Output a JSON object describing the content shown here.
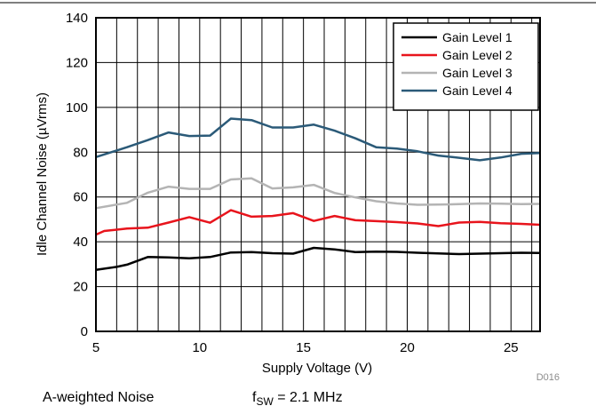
{
  "chart_data": {
    "type": "line",
    "xlabel": "Supply Voltage (V)",
    "ylabel": "Idle Channel Noise (µVrms)",
    "xlim": [
      5,
      26.4
    ],
    "ylim": [
      0,
      140
    ],
    "x_ticks": [
      5,
      10,
      15,
      20,
      25
    ],
    "y_ticks": [
      0,
      20,
      40,
      60,
      80,
      100,
      120,
      140
    ],
    "grid": true,
    "legend_position": "top-right",
    "series": [
      {
        "name": "Gain Level 1",
        "color": "#000000",
        "x": [
          5,
          6,
          6.5,
          7.5,
          8.5,
          9.5,
          10.5,
          11.5,
          12.5,
          13.5,
          14.5,
          15.5,
          16.5,
          17.5,
          18.5,
          19.5,
          20.5,
          21.5,
          22.5,
          23.5,
          24.5,
          25.5,
          26.4
        ],
        "y": [
          27.5,
          28.8,
          29.8,
          33.2,
          33.0,
          32.6,
          33.2,
          35.2,
          35.4,
          34.9,
          34.7,
          37.3,
          36.6,
          35.4,
          35.6,
          35.5,
          35.1,
          34.8,
          34.5,
          34.7,
          34.9,
          35.1,
          35.0
        ]
      },
      {
        "name": "Gain Level 2",
        "color": "#e8141c",
        "x": [
          5,
          5.4,
          6.5,
          7.5,
          8.5,
          9.5,
          10.5,
          11.5,
          12.5,
          13.5,
          14.5,
          15.5,
          16.5,
          17.5,
          18.5,
          19.5,
          20.5,
          21.5,
          22.5,
          23.5,
          24.5,
          25.5,
          26.4
        ],
        "y": [
          43.2,
          44.8,
          45.9,
          46.3,
          48.6,
          51.0,
          48.5,
          54.1,
          51.2,
          51.5,
          52.8,
          49.3,
          51.5,
          49.6,
          49.2,
          48.8,
          48.2,
          47.0,
          48.6,
          48.9,
          48.3,
          48.0,
          47.6
        ]
      },
      {
        "name": "Gain Level 3",
        "color": "#b4b4b4",
        "x": [
          5,
          6.5,
          7.5,
          8.5,
          9.5,
          10.5,
          11.5,
          12.5,
          13.5,
          14.5,
          15.5,
          16.5,
          17.5,
          18.5,
          19.5,
          20.5,
          21.5,
          22.5,
          23.5,
          24.5,
          25.5,
          26.4
        ],
        "y": [
          55.0,
          57.4,
          61.9,
          64.6,
          63.6,
          63.6,
          67.8,
          68.3,
          63.8,
          64.3,
          65.4,
          61.8,
          59.8,
          58.1,
          57.1,
          56.5,
          56.6,
          56.8,
          57.1,
          57.0,
          56.8,
          56.9
        ]
      },
      {
        "name": "Gain Level 4",
        "color": "#2b5a78",
        "x": [
          5,
          6.5,
          7.5,
          8.5,
          9.5,
          10.5,
          11.5,
          12.5,
          13.5,
          14.5,
          15.5,
          16.5,
          17.5,
          18.5,
          19.5,
          20.5,
          21.5,
          22.5,
          23.5,
          24.5,
          25.5,
          26.4
        ],
        "y": [
          77.8,
          82.2,
          85.4,
          88.8,
          87.2,
          87.4,
          95.0,
          94.3,
          91.0,
          91.0,
          92.3,
          89.6,
          86.2,
          82.2,
          81.6,
          80.4,
          78.5,
          77.5,
          76.4,
          77.6,
          79.3,
          79.6
        ]
      }
    ]
  },
  "footer": {
    "condition_left": "A-weighted Noise",
    "condition_right_prefix": "f",
    "condition_right_sub": "SW",
    "condition_right_suffix": " = 2.1 MHz",
    "figure_code": "D016"
  }
}
